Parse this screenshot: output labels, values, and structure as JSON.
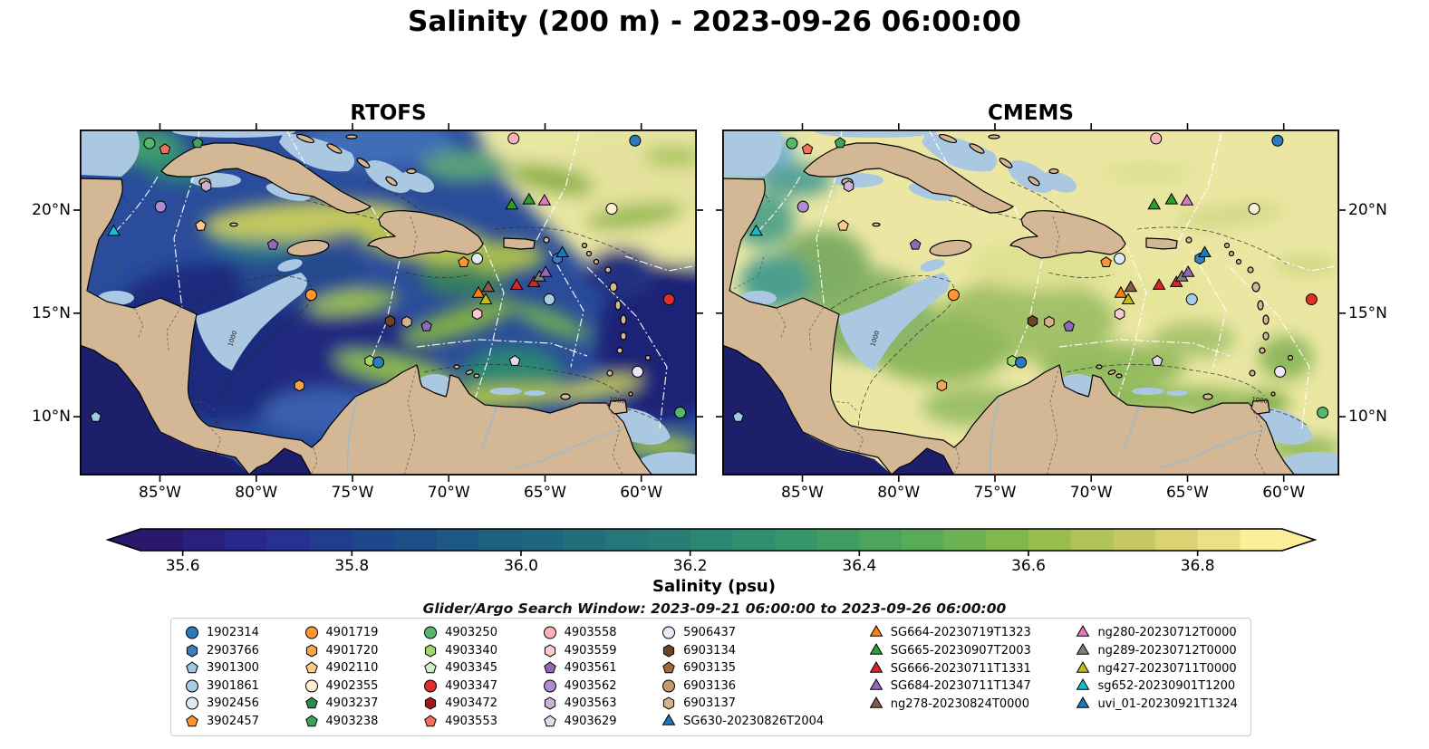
{
  "title": "Salinity (200 m) - 2023-09-26 06:00:00",
  "panels": [
    {
      "id": "rtofs",
      "title": "RTOFS"
    },
    {
      "id": "cmems",
      "title": "CMEMS"
    }
  ],
  "axes": {
    "lon_ticks": [
      {
        "label": "85°W",
        "f": 0.13
      },
      {
        "label": "80°W",
        "f": 0.286
      },
      {
        "label": "75°W",
        "f": 0.442
      },
      {
        "label": "70°W",
        "f": 0.598
      },
      {
        "label": "65°W",
        "f": 0.754
      },
      {
        "label": "60°W",
        "f": 0.91
      }
    ],
    "lat_ticks": [
      {
        "label": "20°N",
        "f": 0.233
      },
      {
        "label": "15°N",
        "f": 0.531
      },
      {
        "label": "10°N",
        "f": 0.83
      }
    ]
  },
  "colorbar": {
    "label": "Salinity (psu)",
    "vmin": 35.55,
    "vmax": 36.9,
    "ticks": [
      35.6,
      35.8,
      36.0,
      36.2,
      36.4,
      36.6,
      36.8
    ],
    "tick_labels": [
      "35.6",
      "35.8",
      "36.0",
      "36.2",
      "36.4",
      "36.6",
      "36.8"
    ],
    "colors": [
      "#29186b",
      "#2a2c94",
      "#1b4989",
      "#1c5e80",
      "#23727b",
      "#2b8673",
      "#3a9a67",
      "#5bad56",
      "#92bd4b",
      "#d1c967",
      "#fdee99"
    ]
  },
  "search_window": "Glider/Argo Search Window: 2023-09-21 06:00:00 to 2023-09-26 06:00:00",
  "map_annotations": {
    "contour_labels": [
      "1000",
      "1000"
    ]
  },
  "chart_data": {
    "type": "heatmap",
    "title": "Salinity (200 m) - 2023-09-26 06:00:00",
    "panels": [
      "RTOFS",
      "CMEMS"
    ],
    "x": {
      "tick_labels": [
        "85°W",
        "80°W",
        "75°W",
        "70°W",
        "65°W",
        "60°W"
      ],
      "range_deg_west": [
        89.2,
        57.1
      ]
    },
    "y": {
      "tick_labels": [
        "20°N",
        "15°N",
        "10°N"
      ],
      "range_deg_north": [
        8.1,
        23.9
      ]
    },
    "color_scale": {
      "label": "Salinity (psu)",
      "ticks": [
        35.6,
        35.8,
        36.0,
        36.2,
        36.4,
        36.6,
        36.8
      ],
      "vmin": 35.55,
      "vmax": 36.9,
      "extend": "both",
      "palette": "haline"
    },
    "overlay": "Argo float and glider surfacing positions during the search window",
    "legend_position": "bottom"
  },
  "legend": {
    "columns": [
      [
        {
          "label": "1902314",
          "marker": "circle",
          "color": "#2b7bba"
        },
        {
          "label": "2903766",
          "marker": "hexagon",
          "color": "#3a7ebf"
        },
        {
          "label": "3901300",
          "marker": "pentagon",
          "color": "#9ecae1"
        },
        {
          "label": "3901861",
          "marker": "circle",
          "color": "#a6cee3"
        },
        {
          "label": "3902456",
          "marker": "circle",
          "color": "#ddeaf6"
        },
        {
          "label": "3902457",
          "marker": "pentagon",
          "color": "#ff952e"
        }
      ],
      [
        {
          "label": "4901719",
          "marker": "circle",
          "color": "#ff9831"
        },
        {
          "label": "4901720",
          "marker": "hexagon",
          "color": "#f5a54a"
        },
        {
          "label": "4902110",
          "marker": "pentagon",
          "color": "#fdc98a"
        },
        {
          "label": "4902355",
          "marker": "circle",
          "color": "#fdf1d2"
        },
        {
          "label": "4903237",
          "marker": "pentagon",
          "color": "#2e8b4f"
        },
        {
          "label": "4903238",
          "marker": "pentagon",
          "color": "#3fa45c"
        }
      ],
      [
        {
          "label": "4903250",
          "marker": "circle",
          "color": "#57b86b"
        },
        {
          "label": "4903340",
          "marker": "hexagon",
          "color": "#a1d76a"
        },
        {
          "label": "4903345",
          "marker": "pentagon",
          "color": "#d3eec4"
        },
        {
          "label": "4903347",
          "marker": "circle",
          "color": "#e02f28"
        },
        {
          "label": "4903472",
          "marker": "hexagon",
          "color": "#9e1a1d"
        },
        {
          "label": "4903553",
          "marker": "pentagon",
          "color": "#f4705f"
        }
      ],
      [
        {
          "label": "4903558",
          "marker": "circle",
          "color": "#f9b4bb"
        },
        {
          "label": "4903559",
          "marker": "hexagon",
          "color": "#fbc9ce"
        },
        {
          "label": "4903561",
          "marker": "pentagon",
          "color": "#8f6bb5"
        },
        {
          "label": "4903562",
          "marker": "circle",
          "color": "#b18bcf"
        },
        {
          "label": "4903563",
          "marker": "hexagon",
          "color": "#cab2d6"
        },
        {
          "label": "4903629",
          "marker": "pentagon",
          "color": "#e4d9ef"
        }
      ],
      [
        {
          "label": "5906437",
          "marker": "circle",
          "color": "#eee6f7"
        },
        {
          "label": "6903134",
          "marker": "hexagon",
          "color": "#6e4423"
        },
        {
          "label": "6903135",
          "marker": "pentagon",
          "color": "#9c6a33"
        },
        {
          "label": "6903136",
          "marker": "circle",
          "color": "#c49a6c"
        },
        {
          "label": "6903137",
          "marker": "hexagon",
          "color": "#d7b08c"
        },
        {
          "label": "SG630-20230826T2004",
          "marker": "triangle",
          "color": "#1f77b4"
        }
      ],
      [
        {
          "label": "SG664-20230719T1323",
          "marker": "triangle",
          "color": "#ff7f0e"
        },
        {
          "label": "SG665-20230907T2003",
          "marker": "triangle",
          "color": "#2ca02c"
        },
        {
          "label": "SG666-20230711T1331",
          "marker": "triangle",
          "color": "#d62728"
        },
        {
          "label": "SG684-20230711T1347",
          "marker": "triangle",
          "color": "#9467bd"
        },
        {
          "label": "ng278-20230824T0000",
          "marker": "triangle",
          "color": "#8c564b"
        }
      ],
      [
        {
          "label": "ng280-20230712T0000",
          "marker": "triangle",
          "color": "#e377c2"
        },
        {
          "label": "ng289-20230712T0000",
          "marker": "triangle",
          "color": "#7f7f7f"
        },
        {
          "label": "ng427-20230711T0000",
          "marker": "triangle",
          "color": "#bcbd22"
        },
        {
          "label": "sg652-20230901T1200",
          "marker": "triangle",
          "color": "#17becf"
        },
        {
          "label": "uvi_01-20230921T1324",
          "marker": "triangle",
          "color": "#1f77b4"
        }
      ]
    ]
  },
  "markers": [
    {
      "x": 0.113,
      "y": 0.04,
      "s": "circle",
      "c": "#57b86b"
    },
    {
      "x": 0.138,
      "y": 0.057,
      "s": "pentagon",
      "c": "#f4705f"
    },
    {
      "x": 0.191,
      "y": 0.039,
      "s": "pentagon",
      "c": "#3fa45c"
    },
    {
      "x": 0.703,
      "y": 0.026,
      "s": "circle",
      "c": "#f9b4bb"
    },
    {
      "x": 0.9,
      "y": 0.032,
      "s": "circle",
      "c": "#2b7bba"
    },
    {
      "x": 0.131,
      "y": 0.223,
      "s": "circle",
      "c": "#b18bcf"
    },
    {
      "x": 0.205,
      "y": 0.164,
      "s": "hexagon",
      "c": "#cab2d6"
    },
    {
      "x": 0.196,
      "y": 0.278,
      "s": "pentagon",
      "c": "#fdc98a"
    },
    {
      "x": 0.055,
      "y": 0.296,
      "s": "triangle",
      "c": "#17becf"
    },
    {
      "x": 0.313,
      "y": 0.333,
      "s": "pentagon",
      "c": "#8f6bb5"
    },
    {
      "x": 0.7,
      "y": 0.22,
      "s": "triangle",
      "c": "#2ca02c"
    },
    {
      "x": 0.728,
      "y": 0.205,
      "s": "triangle",
      "c": "#2ca02c"
    },
    {
      "x": 0.753,
      "y": 0.208,
      "s": "triangle",
      "c": "#e377c2"
    },
    {
      "x": 0.862,
      "y": 0.229,
      "s": "circle",
      "c": "#fdf1d2"
    },
    {
      "x": 0.622,
      "y": 0.384,
      "s": "pentagon",
      "c": "#ff952e"
    },
    {
      "x": 0.644,
      "y": 0.373,
      "s": "circle",
      "c": "#ddeaf6"
    },
    {
      "x": 0.774,
      "y": 0.373,
      "s": "hexagon",
      "c": "#3a7ebf"
    },
    {
      "x": 0.782,
      "y": 0.358,
      "s": "triangle",
      "c": "#1f77b4"
    },
    {
      "x": 0.375,
      "y": 0.478,
      "s": "circle",
      "c": "#ff9831"
    },
    {
      "x": 0.646,
      "y": 0.475,
      "s": "triangle",
      "c": "#ff7f0e"
    },
    {
      "x": 0.658,
      "y": 0.494,
      "s": "triangle",
      "c": "#bcbd22"
    },
    {
      "x": 0.662,
      "y": 0.458,
      "s": "triangle",
      "c": "#8c564b"
    },
    {
      "x": 0.708,
      "y": 0.452,
      "s": "triangle",
      "c": "#d62728"
    },
    {
      "x": 0.736,
      "y": 0.444,
      "s": "triangle",
      "c": "#d62728"
    },
    {
      "x": 0.745,
      "y": 0.428,
      "s": "triangle",
      "c": "#7f7f7f"
    },
    {
      "x": 0.755,
      "y": 0.415,
      "s": "triangle",
      "c": "#9467bd"
    },
    {
      "x": 0.761,
      "y": 0.491,
      "s": "circle",
      "c": "#a6cee3"
    },
    {
      "x": 0.955,
      "y": 0.491,
      "s": "circle",
      "c": "#e02f28"
    },
    {
      "x": 0.644,
      "y": 0.533,
      "s": "hexagon",
      "c": "#fbc9ce"
    },
    {
      "x": 0.503,
      "y": 0.554,
      "s": "hexagon",
      "c": "#6e4423"
    },
    {
      "x": 0.53,
      "y": 0.556,
      "s": "hexagon",
      "c": "#d7b08c"
    },
    {
      "x": 0.562,
      "y": 0.569,
      "s": "pentagon",
      "c": "#8f6bb5"
    },
    {
      "x": 0.47,
      "y": 0.669,
      "s": "hexagon",
      "c": "#a1d76a"
    },
    {
      "x": 0.484,
      "y": 0.673,
      "s": "circle",
      "c": "#2b7bba"
    },
    {
      "x": 0.705,
      "y": 0.669,
      "s": "pentagon",
      "c": "#e4d9ef"
    },
    {
      "x": 0.356,
      "y": 0.74,
      "s": "hexagon",
      "c": "#f5a54a"
    },
    {
      "x": 0.904,
      "y": 0.7,
      "s": "circle",
      "c": "#eee6f7"
    },
    {
      "x": 0.973,
      "y": 0.818,
      "s": "circle",
      "c": "#57b86b"
    },
    {
      "x": 0.026,
      "y": 0.831,
      "s": "pentagon",
      "c": "#9ecae1"
    }
  ]
}
